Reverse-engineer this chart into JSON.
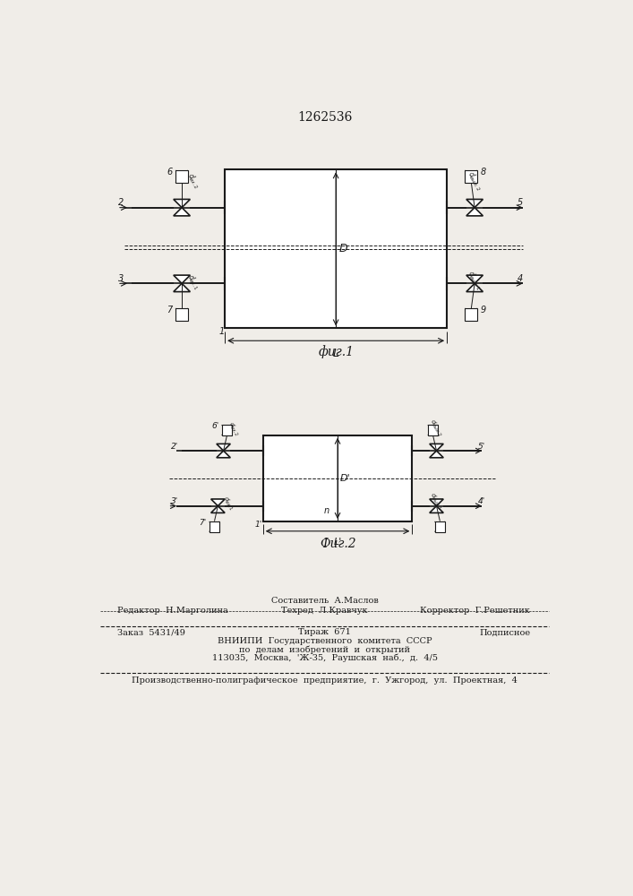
{
  "title": "1262536",
  "fig1_label": "фиг.1",
  "fig2_label": "Фиг.2",
  "bg_color": "#f0ede8",
  "line_color": "#1a1a1a",
  "footer_line1_left": "Редактор  Н.Марголина",
  "footer_line1_center": "Составитель  А.Маслов",
  "footer_line1_right": "Корректор  Г.Решетник",
  "footer_line2_center": "Техред  Л.Кравчук",
  "footer_line3_left": "Заказ  5431/49",
  "footer_line3_center": "Тираж  671",
  "footer_line3_right": "Подписное",
  "footer_line4": "ВНИИПИ  Государственного  комитета  СССР",
  "footer_line5": "по  делам  изобретений  и  открытий",
  "footer_line6": "113035,  Москва,  'Ж-35,  Раушская  наб.,  д.  4/5",
  "footer_line7": "Производственно-полиграфическое  предприятие,  г.  Ужгород,  ул.  Проектная,  4"
}
